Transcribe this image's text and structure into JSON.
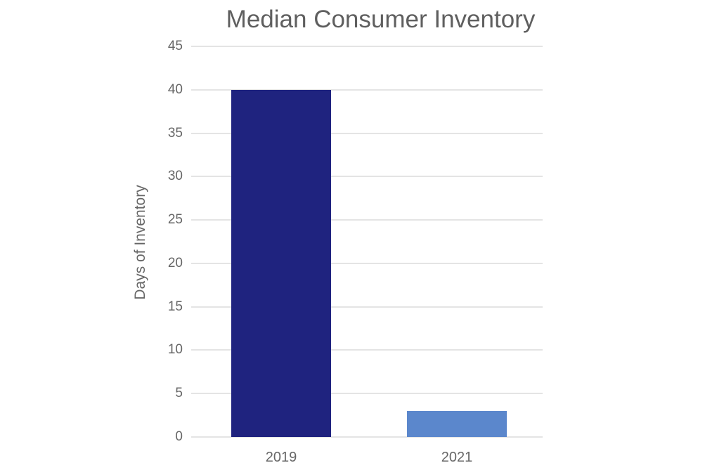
{
  "chart_data": {
    "type": "bar",
    "title": "Median Consumer Inventory",
    "xlabel": "",
    "ylabel": "Days of Inventory",
    "categories": [
      "2019",
      "2021"
    ],
    "values": [
      40,
      3
    ],
    "colors": [
      "#1f237f",
      "#5b87cc"
    ],
    "ylim": [
      0,
      45
    ],
    "yticks": [
      "0",
      "5",
      "10",
      "15",
      "20",
      "25",
      "30",
      "35",
      "40",
      "45"
    ],
    "grid": true,
    "legend": null
  }
}
